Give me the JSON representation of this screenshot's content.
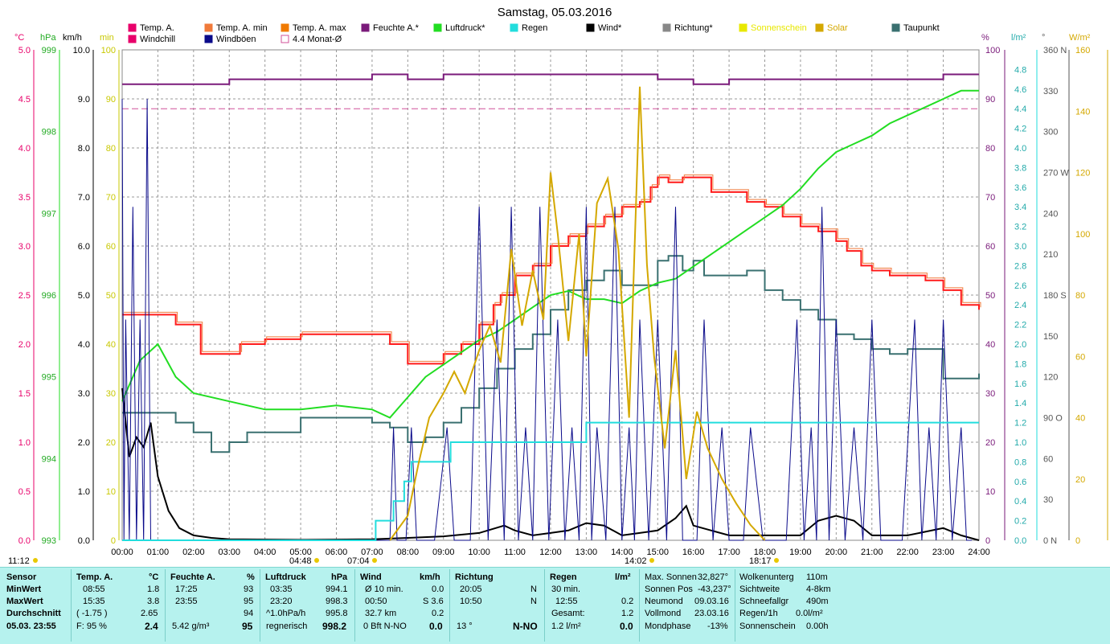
{
  "title": "Samstag, 05.03.2016",
  "axis_units": {
    "c": "°C",
    "hpa": "hPa",
    "kmh": "km/h",
    "min": "min",
    "pct": "%",
    "lm2": "l/m²",
    "deg": "°",
    "wm2": "W/m²"
  },
  "legend": [
    {
      "label": "Temp. A.",
      "color": "#e8006a"
    },
    {
      "label": "Temp. A. min",
      "color": "#f07a3a"
    },
    {
      "label": "Temp. A. max",
      "color": "#f07a00"
    },
    {
      "label": "Feuchte A.*",
      "color": "#7a1a7a"
    },
    {
      "label": "Luftdruck*",
      "color": "#22dd22"
    },
    {
      "label": "Regen",
      "color": "#22dddd"
    },
    {
      "label": "Wind*",
      "color": "#000000"
    },
    {
      "label": "Richtung*",
      "color": "#888888"
    },
    {
      "label": "Sonnenschein",
      "color": "#e8e800"
    },
    {
      "label": "Solar",
      "color": "#d4a800"
    },
    {
      "label": "Taupunkt",
      "color": "#3a7070"
    },
    {
      "label": "Windchill",
      "color": "#e8006a"
    },
    {
      "label": "Windböen",
      "color": "#0a0a8a"
    },
    {
      "label": "4.4 Monat-Ø",
      "color": "#d0509a"
    }
  ],
  "colors": {
    "grid": "#999999",
    "temp": "#ff1a1a",
    "temp_alt": "#f07a3a",
    "feuchte": "#7a1a7a",
    "druck": "#22dd22",
    "regen": "#22dddd",
    "wind": "#000000",
    "boeen": "#0a0a8a",
    "taupunkt": "#3a7070",
    "solar": "#d4a800",
    "monat": "#d0509a",
    "panel": "#b6f2ee"
  },
  "axis_ticks": {
    "temp_c": [
      "5.0",
      "4.5",
      "4.0",
      "3.5",
      "3.0",
      "2.5",
      "2.0",
      "1.5",
      "1.0",
      "0.5",
      "0.0"
    ],
    "druck_hpa": [
      "999",
      "998",
      "997",
      "996",
      "995",
      "994",
      "993"
    ],
    "wind_kmh": [
      "10.0",
      "9.0",
      "8.0",
      "7.0",
      "6.0",
      "5.0",
      "4.0",
      "3.0",
      "2.0",
      "1.0",
      "0.0"
    ],
    "sonne_min": [
      "100",
      "90",
      "80",
      "70",
      "60",
      "50",
      "40",
      "30",
      "20",
      "10",
      "0"
    ],
    "feuchte_pct": [
      "100",
      "90",
      "80",
      "70",
      "60",
      "50",
      "40",
      "30",
      "20",
      "10",
      "0"
    ],
    "regen_lm2": [
      "4.8",
      "4.6",
      "4.4",
      "4.2",
      "4.0",
      "3.8",
      "3.6",
      "3.4",
      "3.2",
      "3.0",
      "2.8",
      "2.6",
      "2.4",
      "2.2",
      "2.0",
      "1.8",
      "1.6",
      "1.4",
      "1.2",
      "1.0",
      "0.8",
      "0.6",
      "0.4",
      "0.2",
      "0.0"
    ],
    "richtung_deg": [
      "360 N",
      "330",
      "300",
      "270 W",
      "240",
      "210",
      "180 S",
      "150",
      "120",
      "90 O",
      "60",
      "30",
      "0 N"
    ],
    "solar_wm2": [
      "160",
      "140",
      "120",
      "100",
      "80",
      "60",
      "40",
      "20",
      "0"
    ],
    "x_hours": [
      "00:00",
      "01:00",
      "02:00",
      "03:00",
      "04:00",
      "05:00",
      "06:00",
      "07:00",
      "08:00",
      "09:00",
      "10:00",
      "11:00",
      "12:00",
      "13:00",
      "14:00",
      "15:00",
      "16:00",
      "17:00",
      "18:00",
      "19:00",
      "20:00",
      "21:00",
      "22:00",
      "23:00",
      "24:00"
    ]
  },
  "time_marks": [
    "11:12",
    "04:48",
    "07:04",
    "14:02",
    "18:17"
  ],
  "chart_data": {
    "type": "line",
    "title": "Samstag, 05.03.2016",
    "xlim_hours": [
      0,
      24
    ],
    "ylim": {
      "temp_c": [
        0,
        5
      ],
      "druck_hpa": [
        993,
        999
      ],
      "wind_kmh": [
        0,
        10
      ],
      "feuchte_pct": [
        0,
        100
      ],
      "regen_lm2": [
        0,
        5
      ],
      "solar_wm2": [
        0,
        160
      ]
    },
    "series": [
      {
        "name": "Temp. A.",
        "unit": "°C",
        "x": [
          0,
          1.1,
          1.5,
          2.2,
          3,
          3.3,
          3.6,
          4,
          5,
          6,
          7,
          7.5,
          8,
          8.4,
          9,
          9.5,
          10,
          10.4,
          10.6,
          11,
          11.5,
          12,
          12.5,
          13,
          13.5,
          14,
          14.5,
          14.8,
          15,
          15.3,
          15.7,
          16,
          16.5,
          17,
          17.5,
          18,
          18.5,
          19,
          19.5,
          20,
          20.3,
          20.7,
          21,
          21.5,
          22,
          22.5,
          23,
          23.5,
          23.8,
          24
        ],
        "y": [
          2.3,
          2.3,
          2.2,
          1.9,
          1.9,
          2.0,
          2.0,
          2.05,
          2.1,
          2.1,
          2.1,
          2.0,
          1.8,
          1.8,
          1.9,
          2.0,
          2.2,
          2.4,
          2.5,
          2.7,
          2.8,
          3.0,
          3.1,
          3.2,
          3.3,
          3.4,
          3.45,
          3.6,
          3.7,
          3.65,
          3.7,
          3.7,
          3.55,
          3.55,
          3.45,
          3.4,
          3.3,
          3.2,
          3.15,
          3.05,
          2.95,
          2.8,
          2.75,
          2.7,
          2.7,
          2.65,
          2.55,
          2.4,
          2.4,
          2.35
        ]
      },
      {
        "name": "Taupunkt",
        "unit": "°C",
        "x": [
          0,
          1,
          1.5,
          2,
          2.5,
          3,
          3.5,
          4,
          5,
          6,
          7,
          7.5,
          8,
          8.5,
          9,
          9.5,
          10,
          10.5,
          11,
          11.5,
          12,
          12.5,
          13,
          13.5,
          14,
          14.5,
          15,
          15.3,
          15.7,
          16,
          16.3,
          17,
          17.5,
          18,
          18.5,
          19,
          19.5,
          20,
          20.5,
          21,
          21.5,
          22,
          22.5,
          23,
          23.5,
          24
        ],
        "y": [
          1.3,
          1.3,
          1.2,
          1.1,
          0.9,
          1.0,
          1.1,
          1.1,
          1.25,
          1.25,
          1.2,
          1.15,
          1.0,
          1.05,
          1.2,
          1.35,
          1.55,
          1.75,
          1.95,
          2.1,
          2.35,
          2.55,
          2.65,
          2.75,
          2.6,
          2.6,
          2.85,
          2.9,
          2.75,
          2.85,
          2.7,
          2.7,
          2.75,
          2.55,
          2.45,
          2.35,
          2.25,
          2.1,
          2.05,
          1.95,
          1.9,
          1.95,
          1.95,
          1.65,
          1.65,
          1.7
        ]
      },
      {
        "name": "Feuchte A.*",
        "unit": "%",
        "x": [
          0,
          2,
          3,
          4,
          6,
          7,
          8,
          9,
          11,
          13,
          14,
          15,
          16,
          17,
          19,
          20,
          21,
          22,
          23,
          24
        ],
        "y": [
          93,
          93,
          94,
          94,
          94,
          95,
          94,
          95,
          95,
          95,
          95,
          94,
          93,
          94,
          94,
          94,
          94,
          94,
          95,
          95
        ]
      },
      {
        "name": "Luftdruck*",
        "unit": "hPa",
        "x": [
          0,
          0.5,
          1,
          1.5,
          2,
          3,
          4,
          5,
          6,
          7,
          7.5,
          8,
          8.5,
          9,
          9.5,
          10,
          10.5,
          11,
          11.5,
          12,
          12.5,
          13,
          13.5,
          14,
          14.5,
          15,
          15.5,
          16,
          16.5,
          17,
          17.5,
          18,
          18.5,
          19,
          19.5,
          20,
          20.5,
          21,
          21.5,
          22,
          22.5,
          23,
          23.5,
          24
        ],
        "y": [
          994.7,
          995.2,
          995.4,
          995.0,
          994.8,
          994.7,
          994.6,
          994.6,
          994.65,
          994.6,
          994.5,
          994.75,
          995.0,
          995.15,
          995.3,
          995.45,
          995.55,
          995.7,
          995.85,
          996.0,
          996.05,
          995.95,
          995.95,
          995.9,
          996.05,
          996.15,
          996.2,
          996.35,
          996.5,
          996.65,
          996.8,
          996.95,
          997.1,
          997.3,
          997.55,
          997.75,
          997.85,
          997.95,
          998.1,
          998.2,
          998.3,
          998.4,
          998.5,
          998.5
        ]
      },
      {
        "name": "Wind*",
        "unit": "km/h",
        "x": [
          0,
          0.2,
          0.4,
          0.6,
          0.8,
          1,
          1.3,
          1.6,
          2,
          2.5,
          3,
          5,
          7,
          8,
          9,
          10,
          10.7,
          11,
          11.5,
          12,
          12.5,
          13,
          13.5,
          14,
          14.5,
          15,
          15.5,
          15.8,
          16,
          16.5,
          17,
          18,
          19,
          19.5,
          20,
          20.5,
          21,
          22,
          23,
          23.5,
          24
        ],
        "y": [
          3.1,
          1.7,
          2.1,
          1.9,
          2.4,
          1.3,
          0.6,
          0.25,
          0.1,
          0.05,
          0.02,
          0.01,
          0.02,
          0.05,
          0.08,
          0.15,
          0.3,
          0.2,
          0.1,
          0.15,
          0.2,
          0.35,
          0.3,
          0.1,
          0.15,
          0.2,
          0.45,
          0.7,
          0.3,
          0.2,
          0.1,
          0.1,
          0.1,
          0.4,
          0.5,
          0.4,
          0.1,
          0.1,
          0.25,
          0.1,
          0.0
        ]
      },
      {
        "name": "Windböen",
        "unit": "km/h",
        "x": [
          0,
          0.1,
          0.3,
          0.5,
          0.7,
          0.9,
          1.0,
          1.1,
          7.4,
          7.6,
          7.8,
          8.1,
          8.4,
          9.1,
          9.5,
          10.0,
          10.5,
          10.9,
          11.3,
          11.7,
          12.2,
          12.6,
          13.0,
          13.3,
          13.8,
          14.2,
          14.5,
          15.0,
          15.5,
          15.9,
          16.3,
          16.8,
          17.2,
          17.6,
          18.3,
          18.9,
          19.3,
          19.6,
          20.0,
          20.5,
          21.0,
          21.5,
          22.2,
          22.6,
          23.0,
          23.5,
          23.8
        ],
        "y": [
          9.0,
          4.5,
          6.8,
          4.5,
          9.0,
          0.0,
          0.0,
          0.0,
          0.0,
          2.3,
          0.0,
          2.3,
          0.0,
          2.3,
          0.0,
          6.8,
          4.5,
          6.8,
          2.3,
          6.8,
          4.5,
          2.3,
          6.8,
          2.3,
          6.8,
          2.3,
          4.5,
          4.5,
          6.8,
          0.0,
          4.5,
          2.3,
          0.0,
          2.3,
          0.0,
          4.5,
          2.3,
          6.8,
          4.5,
          2.3,
          4.5,
          0.0,
          4.5,
          2.3,
          4.5,
          2.3,
          0.0
        ]
      },
      {
        "name": "Regen",
        "unit": "l/m²",
        "x": [
          0,
          6.9,
          7.1,
          7.5,
          7.6,
          7.9,
          8.1,
          8.3,
          9.0,
          9.2,
          9.5,
          12.0,
          12.9,
          13.0,
          24
        ],
        "y": [
          0.0,
          0.0,
          0.2,
          0.2,
          0.4,
          0.6,
          0.8,
          0.8,
          0.8,
          1.0,
          1.0,
          1.0,
          1.0,
          1.2,
          1.2
        ]
      },
      {
        "name": "Solar",
        "unit": "W/m²",
        "x": [
          7.5,
          8.0,
          8.3,
          8.6,
          9.0,
          9.3,
          9.6,
          10.0,
          10.3,
          10.6,
          10.9,
          11.2,
          11.5,
          11.8,
          12.0,
          12.2,
          12.5,
          12.8,
          13.0,
          13.3,
          13.6,
          13.9,
          14.2,
          14.5,
          14.7,
          14.9,
          15.2,
          15.5,
          15.8,
          16.1,
          16.4,
          16.8,
          17.2,
          17.6,
          18.0
        ],
        "y": [
          0,
          8,
          25,
          40,
          48,
          55,
          48,
          62,
          70,
          58,
          95,
          70,
          88,
          72,
          120,
          100,
          65,
          100,
          60,
          110,
          118,
          95,
          40,
          148,
          90,
          60,
          30,
          62,
          20,
          42,
          30,
          20,
          12,
          5,
          0
        ]
      }
    ],
    "monat_mittel_pct": 88
  },
  "panel": {
    "col_sensor": {
      "title": "Sensor",
      "min": "MinWert",
      "max": "MaxWert",
      "avg": "Durchschnitt",
      "cur": "05.03. 23:55"
    },
    "col_temp": {
      "title": "Temp. A.",
      "unit": "°C",
      "min_time": "08:55",
      "min_val": "1.8",
      "max_time": "15:35",
      "max_val": "3.8",
      "avg_extra": "( -1.75 )",
      "avg_val": "2.65",
      "cur_label": "F: 95 %",
      "cur_val": "2.4"
    },
    "col_feuchte": {
      "title": "Feuchte A.",
      "unit": "%",
      "min_time": "17:25",
      "min_val": "93",
      "max_time": "23:55",
      "max_val": "95",
      "avg_val": "94",
      "cur_label": "5.42 g/m³",
      "cur_val": "95"
    },
    "col_druck": {
      "title": "Luftdruck",
      "unit": "hPa",
      "min_time": "03:35",
      "min_val": "994.1",
      "max_time": "23:20",
      "max_val": "998.3",
      "avg_extra": "^1.0hPa/h",
      "avg_val": "995.8",
      "cur_label": "regnerisch",
      "cur_val": "998.2"
    },
    "col_wind": {
      "title": "Wind",
      "unit": "km/h",
      "r1_label": "Ø 10 min.",
      "r1_val": "0.0",
      "r2_time": "00:50",
      "r2_val": "S 3.6",
      "r3_label": "32.7 km",
      "r3_val": "0.2",
      "r4_label": "0 Bft N-NO",
      "r4_val": "0.0"
    },
    "col_richtung": {
      "title": "Richtung",
      "r1_time": "20:05",
      "r1_val": "N",
      "r2_time": "10:50",
      "r2_val": "N",
      "r4_label": "13 °",
      "r4_val": "N-NO"
    },
    "col_regen": {
      "title": "Regen",
      "unit": "l/m²",
      "r1_label": "30 min.",
      "r2_time": "12:55",
      "r2_val": "0.2",
      "r3_label": "Gesamt:",
      "r3_val": "1.2",
      "r4_label": "1.2 l/m²",
      "r4_val": "0.0"
    },
    "col_sonne": [
      {
        "label": "Max. Sonnen",
        "val": "32,827°"
      },
      {
        "label": "Sonnen Pos",
        "val": "-43,237°"
      },
      {
        "label": "Neumond",
        "val": "09.03.16"
      },
      {
        "label": "Vollmond",
        "val": "23.03.16"
      },
      {
        "label": "Mondphase",
        "val": "-13%"
      }
    ],
    "col_wolken": [
      {
        "label": "Wolkenunterg",
        "val": "110m"
      },
      {
        "label": "Sichtweite",
        "val": "4-8km"
      },
      {
        "label": "Schneefallgr",
        "val": "490m"
      },
      {
        "label": "Regen/1h",
        "val": "0.0l/m²"
      },
      {
        "label": "Sonnenschein",
        "val": "0.00h"
      }
    ]
  }
}
